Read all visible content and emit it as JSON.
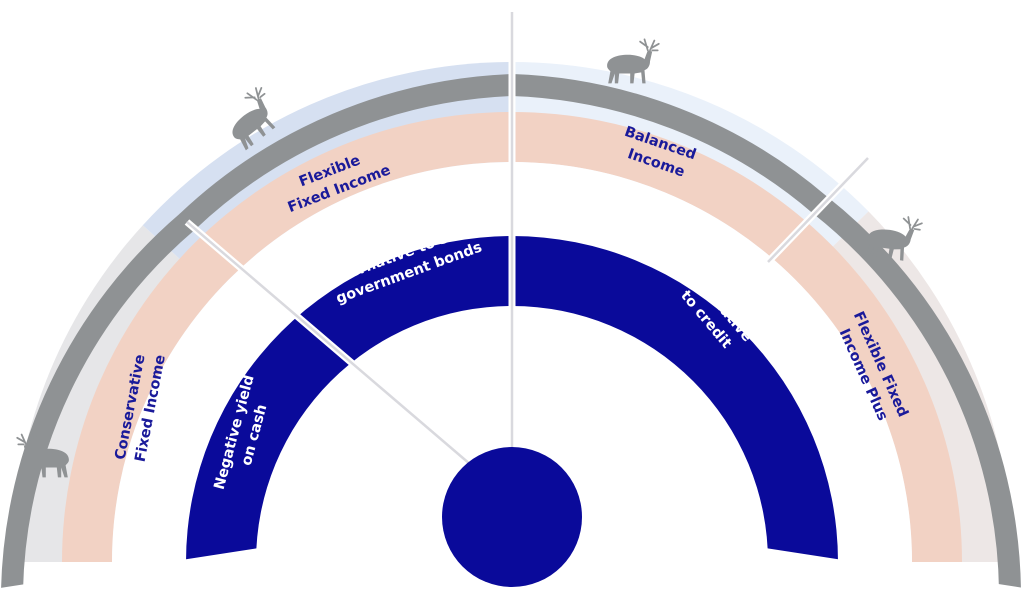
{
  "colors": {
    "navy": "#0a0a9a",
    "peach": "#f2d2c4",
    "rock": "#8f9294",
    "sector_conservative": "#e6e6e8",
    "sector_flexible": "#d6e0f1",
    "sector_balanced": "#eaf1fa",
    "sector_plus": "#ede7e6",
    "outer_label": "#1a1a9a",
    "inner_label": "#ffffff"
  },
  "icons": [
    "reindeer-icon",
    "reindeer-icon",
    "reindeer-icon",
    "reindeer-icon"
  ],
  "outer_labels": [
    {
      "lines": [
        "Conservative",
        "Fixed Income"
      ]
    },
    {
      "lines": [
        "Flexible",
        "Fixed Income"
      ]
    },
    {
      "lines": [
        "Balanced",
        "Income"
      ]
    },
    {
      "lines": [
        "Flexible Fixed",
        "Income Plus"
      ]
    }
  ],
  "inner_labels": [
    {
      "lines": [
        "Negative yield",
        "on cash"
      ]
    },
    {
      "lines": [
        "Alternative to safe",
        "government bonds"
      ]
    },
    {
      "lines": [
        "Alternative",
        "to credit"
      ]
    }
  ]
}
